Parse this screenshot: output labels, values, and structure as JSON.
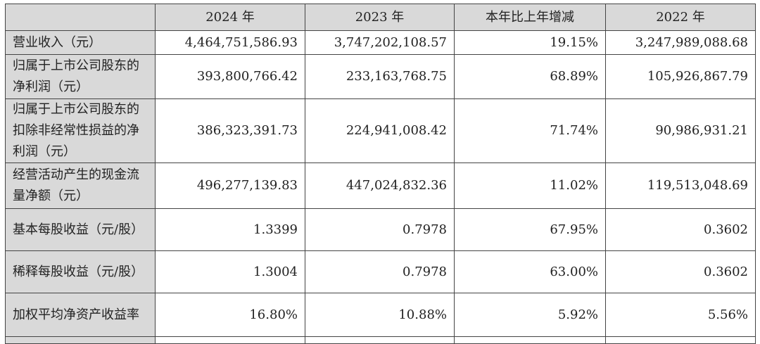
{
  "headers": [
    "",
    "2024 年",
    "2023 年",
    "本年比上年增减",
    "2022 年"
  ],
  "rows": [
    {
      "label": "营业收入（元）",
      "values": [
        "4,464,751,586.93",
        "3,747,202,108.57",
        "19.15%",
        "3,247,989,088.68"
      ]
    },
    {
      "label": "归属于上市公司股东的净利润（元）",
      "values": [
        "393,800,766.42",
        "233,163,768.75",
        "68.89%",
        "105,926,867.79"
      ]
    },
    {
      "label": "归属于上市公司股东的扣除非经常性损益的净利润（元）",
      "values": [
        "386,323,391.73",
        "224,941,008.42",
        "71.74%",
        "90,986,931.21"
      ]
    },
    {
      "label": "经营活动产生的现金流量净额（元）",
      "values": [
        "496,277,139.83",
        "447,024,832.36",
        "11.02%",
        "119,513,048.69"
      ]
    },
    {
      "label": "基本每股收益（元/股）",
      "values": [
        "1.3399",
        "0.7978",
        "67.95%",
        "0.3602"
      ]
    },
    {
      "label": "稀释每股收益（元/股）",
      "values": [
        "1.3004",
        "0.7978",
        "63.00%",
        "0.3602"
      ]
    },
    {
      "label": "加权平均净资产收益率",
      "values": [
        "16.80%",
        "10.88%",
        "5.92%",
        "5.56%"
      ]
    }
  ]
}
